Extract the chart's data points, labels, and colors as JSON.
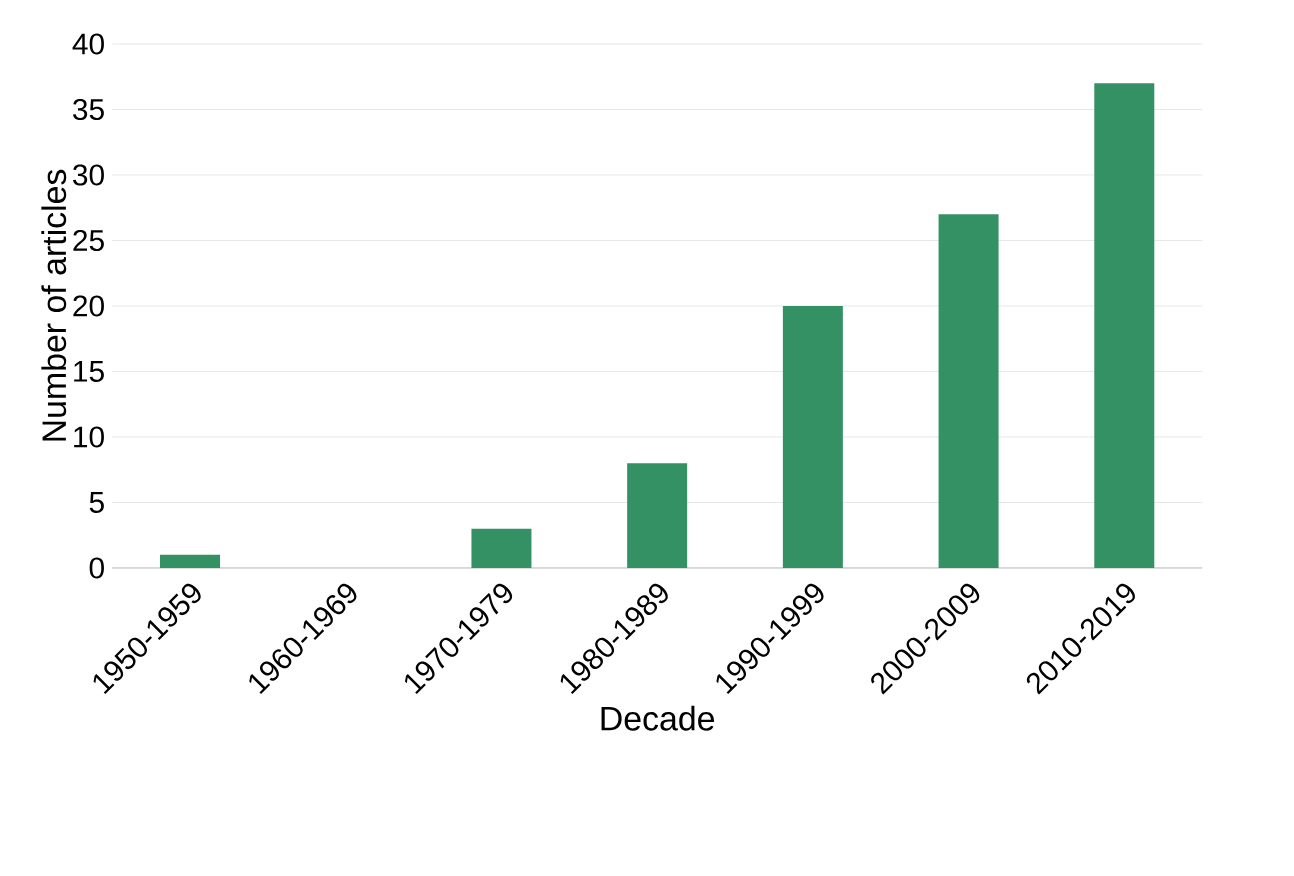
{
  "chart_data": {
    "type": "bar",
    "xlabel": "Decade",
    "ylabel": "Number of articles",
    "categories": [
      "1950-1959",
      "1960-1969",
      "1970-1979",
      "1980-1989",
      "1990-1999",
      "2000-2009",
      "2010-2019"
    ],
    "values": [
      1,
      0,
      3,
      8,
      20,
      27,
      37
    ],
    "color": "#339163",
    "ylim": [
      0,
      40
    ],
    "yticks": [
      0,
      5,
      10,
      15,
      20,
      25,
      30,
      35,
      40
    ],
    "grid": "y"
  }
}
